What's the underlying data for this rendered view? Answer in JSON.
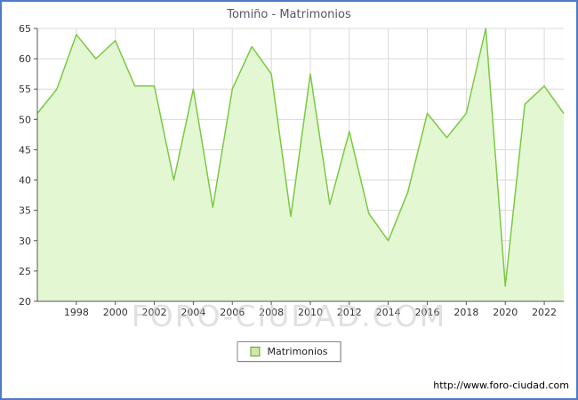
{
  "title": "Tomiño - Matrimonios",
  "watermark": "FORO-CIUDAD.COM",
  "legend": {
    "label": "Matrimonios"
  },
  "footer": {
    "url": "http://www.foro-ciudad.com"
  },
  "chart_data": {
    "type": "area",
    "title": "Tomiño - Matrimonios",
    "x": [
      1996,
      1997,
      1998,
      1999,
      2000,
      2001,
      2002,
      2003,
      2004,
      2005,
      2006,
      2007,
      2008,
      2009,
      2010,
      2011,
      2012,
      2013,
      2014,
      2015,
      2016,
      2017,
      2018,
      2019,
      2020,
      2021,
      2022,
      2023
    ],
    "values": [
      51,
      55,
      64,
      60,
      63,
      55.5,
      55.5,
      40,
      55,
      35.5,
      55,
      62,
      57.5,
      34,
      57.5,
      36,
      48,
      34.5,
      30,
      38,
      51,
      47,
      51,
      65,
      22.5,
      52.5,
      55.5,
      51
    ],
    "series_name": "Matrimonios",
    "xlabel": "",
    "ylabel": "",
    "ylim": [
      20,
      65
    ],
    "y_ticks": [
      20,
      25,
      30,
      35,
      40,
      45,
      50,
      55,
      60,
      65
    ],
    "x_tick_labels": [
      1998,
      2000,
      2002,
      2004,
      2006,
      2008,
      2010,
      2012,
      2014,
      2016,
      2018,
      2020,
      2022
    ],
    "grid": true,
    "legend_position": "bottom",
    "colors": {
      "frame_border": "#4e7ac7",
      "line": "#7ac943",
      "area_fill": "#e3f7d2",
      "grid": "#d9d9d9",
      "axis": "#555555",
      "tick_text": "#333333"
    }
  }
}
